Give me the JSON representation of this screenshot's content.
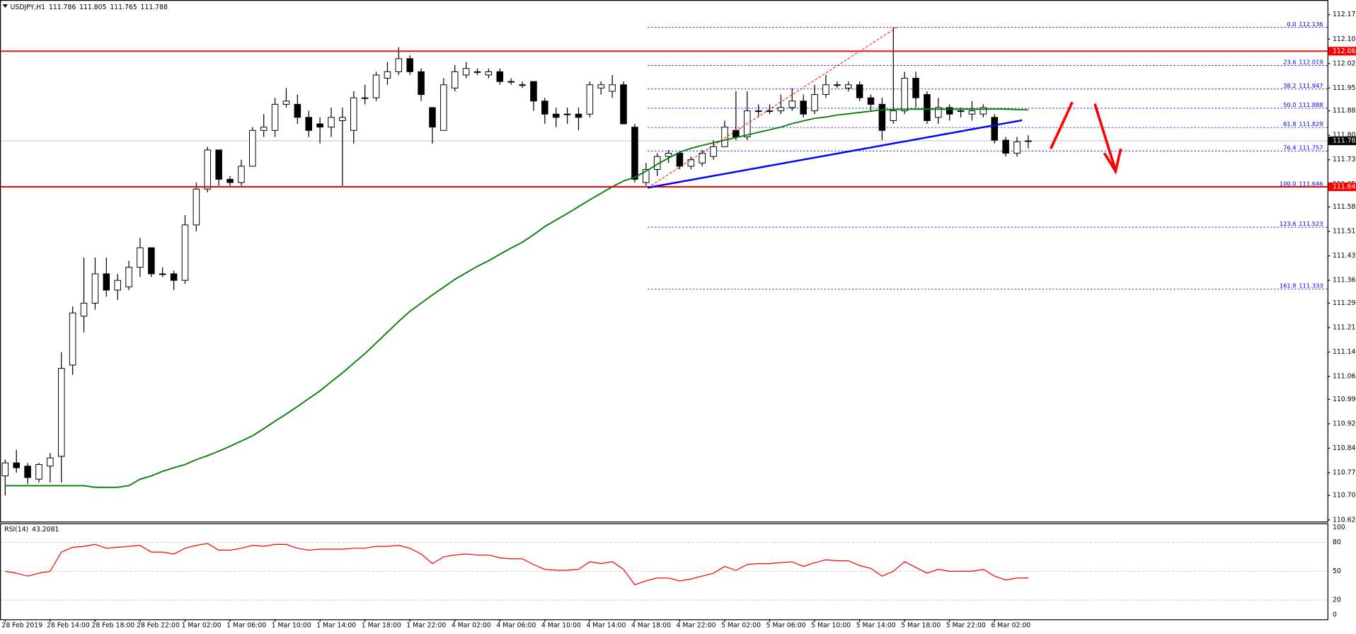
{
  "chart_data": [
    {
      "type": "candlestick",
      "title": "USDJPY,H1",
      "categories": [
        "28 Feb 2019",
        null,
        null,
        null,
        "28 Feb 14:00",
        null,
        null,
        null,
        "28 Feb 18:00",
        null,
        null,
        null,
        "28 Feb 22:00",
        null,
        null,
        null,
        "1 Mar 02:00",
        null,
        null,
        null,
        "1 Mar 06:00",
        null,
        null,
        null,
        "1 Mar 10:00",
        null,
        null,
        null,
        "1 Mar 14:00",
        null,
        null,
        null,
        "1 Mar 18:00",
        null,
        null,
        null,
        "1 Mar 22:00",
        null,
        null,
        null,
        "4 Mar 02:00",
        null,
        null,
        null,
        "4 Mar 06:00",
        null,
        null,
        null,
        "4 Mar 10:00",
        null,
        null,
        null,
        "4 Mar 14:00",
        null,
        null,
        null,
        "4 Mar 18:00",
        null,
        null,
        null,
        "4 Mar 22:00",
        null,
        null,
        null,
        "5 Mar 02:00",
        null,
        null,
        null,
        "5 Mar 06:00",
        null,
        null,
        null,
        "5 Mar 10:00",
        null,
        null,
        null,
        "5 Mar 14:00",
        null,
        null,
        null,
        "5 Mar 18:00",
        null,
        null,
        null,
        "5 Mar 22:00",
        null,
        null,
        null,
        "6 Mar 02:00",
        null,
        null,
        null
      ],
      "open": [
        110.76,
        110.8,
        110.79,
        110.75,
        110.79,
        110.82,
        111.1,
        111.25,
        111.29,
        111.38,
        111.33,
        111.34,
        111.4,
        111.46,
        111.38,
        111.38,
        111.36,
        111.53,
        111.64,
        111.76,
        111.67,
        111.66,
        111.71,
        111.82,
        111.82,
        111.9,
        111.9,
        111.86,
        111.84,
        111.83,
        111.85,
        111.82,
        111.92,
        111.92,
        111.98,
        112.0,
        112.04,
        112.0,
        111.89,
        111.82,
        111.95,
        111.99,
        112.0,
        111.99,
        112.0,
        111.97,
        111.96,
        111.97,
        111.91,
        111.87,
        111.87,
        111.87,
        111.87,
        111.95,
        111.94,
        111.96,
        111.83,
        111.66,
        111.7,
        111.74,
        111.75,
        111.71,
        111.72,
        111.74,
        111.77,
        111.82,
        111.8,
        111.88,
        111.88,
        111.88,
        111.89,
        111.91,
        111.88,
        111.93,
        111.96,
        111.95,
        111.96,
        111.92,
        111.9,
        111.85,
        111.88,
        111.98,
        111.93,
        111.86,
        111.89,
        111.88,
        111.87,
        111.87,
        111.86,
        111.79,
        111.75,
        111.786
      ],
      "high": [
        110.81,
        110.84,
        110.8,
        110.8,
        110.83,
        111.14,
        111.28,
        111.43,
        111.43,
        111.43,
        111.38,
        111.42,
        111.49,
        111.46,
        111.4,
        111.39,
        111.56,
        111.66,
        111.77,
        111.76,
        111.68,
        111.73,
        111.83,
        111.87,
        111.92,
        111.95,
        111.93,
        111.88,
        111.86,
        111.89,
        111.89,
        111.94,
        111.96,
        112.0,
        112.03,
        112.075,
        112.05,
        112.01,
        111.89,
        111.98,
        112.02,
        112.03,
        112.01,
        112.01,
        112.01,
        111.98,
        111.97,
        111.97,
        111.92,
        111.89,
        111.89,
        111.89,
        111.97,
        111.97,
        111.99,
        111.97,
        111.84,
        111.72,
        111.75,
        111.76,
        111.75,
        111.74,
        111.76,
        111.79,
        111.85,
        111.94,
        111.94,
        111.9,
        111.9,
        111.93,
        111.95,
        111.93,
        111.96,
        111.99,
        111.97,
        111.97,
        111.97,
        111.93,
        111.92,
        112.136,
        112.0,
        112.0,
        111.94,
        111.92,
        111.9,
        111.89,
        111.91,
        111.9,
        111.87,
        111.8,
        111.8,
        111.805
      ],
      "low": [
        110.7,
        110.77,
        110.735,
        110.74,
        110.74,
        110.74,
        111.07,
        111.2,
        111.27,
        111.31,
        111.3,
        111.33,
        111.37,
        111.37,
        111.37,
        111.33,
        111.35,
        111.51,
        111.63,
        111.65,
        111.65,
        111.65,
        111.71,
        111.8,
        111.8,
        111.89,
        111.84,
        111.8,
        111.78,
        111.8,
        111.65,
        111.78,
        111.9,
        111.91,
        111.96,
        111.99,
        111.99,
        111.91,
        111.78,
        111.82,
        111.94,
        111.98,
        111.99,
        111.98,
        111.96,
        111.96,
        111.95,
        111.88,
        111.84,
        111.83,
        111.84,
        111.82,
        111.86,
        111.93,
        111.92,
        111.84,
        111.66,
        111.65,
        111.68,
        111.72,
        111.7,
        111.7,
        111.71,
        111.73,
        111.77,
        111.79,
        111.79,
        111.86,
        111.87,
        111.87,
        111.88,
        111.86,
        111.87,
        111.92,
        111.95,
        111.94,
        111.91,
        111.88,
        111.79,
        111.84,
        111.87,
        111.89,
        111.84,
        111.84,
        111.85,
        111.86,
        111.85,
        111.86,
        111.78,
        111.74,
        111.74,
        111.765
      ],
      "close": [
        110.8,
        110.785,
        110.755,
        110.795,
        110.815,
        111.09,
        111.26,
        111.29,
        111.38,
        111.33,
        111.36,
        111.4,
        111.46,
        111.38,
        111.38,
        111.36,
        111.53,
        111.64,
        111.76,
        111.67,
        111.66,
        111.71,
        111.82,
        111.83,
        111.9,
        111.91,
        111.86,
        111.82,
        111.83,
        111.86,
        111.86,
        111.92,
        111.92,
        111.99,
        112.0,
        112.04,
        112.0,
        111.93,
        111.83,
        111.96,
        112.0,
        112.01,
        112.0,
        112.0,
        111.97,
        111.97,
        111.96,
        111.91,
        111.87,
        111.86,
        111.87,
        111.86,
        111.96,
        111.96,
        111.96,
        111.84,
        111.67,
        111.7,
        111.74,
        111.75,
        111.71,
        111.73,
        111.75,
        111.77,
        111.83,
        111.8,
        111.88,
        111.88,
        111.88,
        111.89,
        111.91,
        111.87,
        111.93,
        111.96,
        111.96,
        111.96,
        111.92,
        111.9,
        111.82,
        111.88,
        111.98,
        111.92,
        111.85,
        111.89,
        111.87,
        111.88,
        111.88,
        111.89,
        111.79,
        111.75,
        111.785,
        111.788
      ],
      "moving_average": {
        "color": "#008000",
        "values": [
          110.73,
          110.73,
          110.73,
          110.73,
          110.73,
          110.73,
          110.73,
          110.73,
          110.725,
          110.725,
          110.725,
          110.73,
          110.75,
          110.76,
          110.774,
          110.785,
          110.795,
          110.81,
          110.822,
          110.836,
          110.851,
          110.867,
          110.883,
          110.905,
          110.928,
          110.95,
          110.973,
          110.997,
          111.021,
          111.049,
          111.076,
          111.106,
          111.135,
          111.168,
          111.201,
          111.234,
          111.265,
          111.29,
          111.315,
          111.339,
          111.363,
          111.383,
          111.403,
          111.42,
          111.44,
          111.459,
          111.477,
          111.5,
          111.525,
          111.545,
          111.565,
          111.586,
          111.607,
          111.627,
          111.647,
          111.665,
          111.676,
          111.695,
          111.716,
          111.735,
          111.753,
          111.765,
          111.774,
          111.782,
          111.79,
          111.798,
          111.806,
          111.814,
          111.822,
          111.83,
          111.841,
          111.849,
          111.857,
          111.861,
          111.867,
          111.871,
          111.875,
          111.879,
          111.883,
          111.884,
          111.885,
          111.885,
          111.885,
          111.885,
          111.885,
          111.885,
          111.885,
          111.885,
          111.886,
          111.885,
          111.884,
          111.883
        ]
      },
      "ylim": [
        110.62,
        112.22
      ],
      "yticks": [
        112.175,
        {
          "value": 112.1,
          "label": "112.100"
        },
        112.025,
        {
          "value": 111.95,
          "label": "111.950"
        },
        {
          "value": 111.88,
          "label": "111.880"
        },
        111.805,
        {
          "value": 111.73,
          "label": "111.730"
        },
        111.655,
        111.585,
        {
          "value": 111.51,
          "label": "111.510"
        },
        111.435,
        {
          "value": 111.36,
          "label": "111.360"
        },
        {
          "value": 111.29,
          "label": "111.290"
        },
        111.215,
        {
          "value": 111.14,
          "label": "111.140"
        },
        111.065,
        110.995,
        {
          "value": 110.92,
          "label": "110.920"
        },
        110.845,
        {
          "value": 110.77,
          "label": "110.770"
        },
        {
          "value": 110.7,
          "label": "110.700"
        },
        110.625
      ],
      "grid": false,
      "bull_color": "#ffffff",
      "bear_color": "#000000",
      "levels": [
        {
          "value": 112.063,
          "color": "#ff0000"
        },
        {
          "value": 111.647,
          "color": "#ff0000"
        }
      ],
      "current_price_color": "#c0c0c0",
      "fibonacci": {
        "color": "#0000ff",
        "ratios": [
          "0.0",
          "23.6",
          "38.2",
          "50.0",
          "61.8",
          "76.4",
          "100.0",
          "123.6",
          "161.8"
        ],
        "prices": [
          112.136,
          112.019,
          111.947,
          111.888,
          111.829,
          111.757,
          111.646,
          111.523,
          111.333
        ]
      }
    },
    {
      "type": "line",
      "title": "RSI(14)",
      "color": "#ff0000",
      "values": [
        50,
        48,
        45,
        48,
        50,
        70,
        75,
        76,
        78,
        74,
        75,
        76,
        77,
        70,
        70,
        68,
        74,
        77,
        79,
        72,
        72,
        74,
        77,
        76,
        78,
        78,
        74,
        72,
        73,
        73,
        73,
        74,
        74,
        76,
        76,
        77,
        74,
        68,
        58,
        65,
        67,
        68,
        67,
        67,
        64,
        63,
        63,
        57,
        52,
        51,
        51,
        52,
        60,
        58,
        60,
        52,
        36,
        40,
        43,
        43,
        40,
        42,
        45,
        48,
        55,
        51,
        57,
        58,
        58,
        59,
        60,
        55,
        59,
        62,
        61,
        61,
        56,
        53,
        45,
        50,
        60,
        54,
        48,
        52,
        50,
        50,
        50,
        52,
        45,
        41,
        43,
        43.2081
      ],
      "ylim": [
        0,
        100
      ],
      "yticks": [
        100,
        80,
        50,
        20,
        0
      ]
    }
  ]
}
